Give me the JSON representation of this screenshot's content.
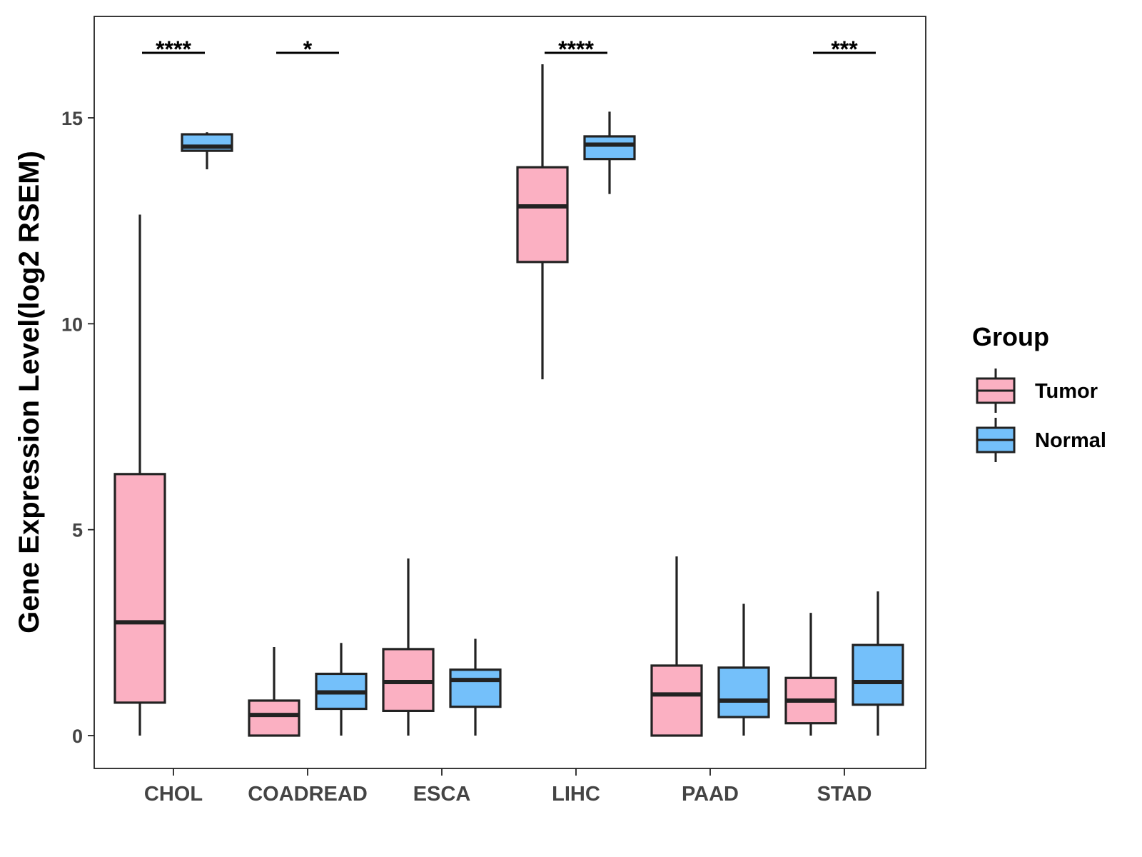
{
  "chart_data": {
    "type": "boxplot",
    "title": "",
    "xlabel": "",
    "ylabel": "Gene Expression Level(log2 RSEM)",
    "ylim": [
      -0.8,
      17.5
    ],
    "yticks": [
      0,
      5,
      10,
      15
    ],
    "categories": [
      "CHOL",
      "COADREAD",
      "ESCA",
      "LIHC",
      "PAAD",
      "STAD"
    ],
    "legend": {
      "title": "Group",
      "position": "right",
      "entries": [
        {
          "name": "Tumor",
          "color": "#FBB0C2"
        },
        {
          "name": "Normal",
          "color": "#74C0FA"
        }
      ]
    },
    "series": [
      {
        "name": "Tumor",
        "color": "#FBB0C2",
        "boxes": [
          {
            "category": "CHOL",
            "min": 0,
            "q1": 0.8,
            "median": 2.75,
            "q3": 6.35,
            "max": 12.65
          },
          {
            "category": "COADREAD",
            "min": 0,
            "q1": 0,
            "median": 0.5,
            "q3": 0.85,
            "max": 2.15
          },
          {
            "category": "ESCA",
            "min": 0,
            "q1": 0.6,
            "median": 1.3,
            "q3": 2.1,
            "max": 4.3
          },
          {
            "category": "LIHC",
            "min": 8.65,
            "q1": 11.5,
            "median": 12.85,
            "q3": 13.8,
            "max": 16.3
          },
          {
            "category": "PAAD",
            "min": 0,
            "q1": 0,
            "median": 1.0,
            "q3": 1.7,
            "max": 4.35
          },
          {
            "category": "STAD",
            "min": 0,
            "q1": 0.3,
            "median": 0.85,
            "q3": 1.4,
            "max": 2.98
          }
        ]
      },
      {
        "name": "Normal",
        "color": "#74C0FA",
        "boxes": [
          {
            "category": "CHOL",
            "min": 13.75,
            "q1": 14.2,
            "median": 14.3,
            "q3": 14.6,
            "max": 14.65
          },
          {
            "category": "COADREAD",
            "min": 0,
            "q1": 0.65,
            "median": 1.05,
            "q3": 1.5,
            "max": 2.25
          },
          {
            "category": "ESCA",
            "min": 0,
            "q1": 0.7,
            "median": 1.35,
            "q3": 1.6,
            "max": 2.35
          },
          {
            "category": "LIHC",
            "min": 13.15,
            "q1": 14.0,
            "median": 14.35,
            "q3": 14.55,
            "max": 15.15
          },
          {
            "category": "PAAD",
            "min": 0,
            "q1": 0.45,
            "median": 0.85,
            "q3": 1.65,
            "max": 3.2
          },
          {
            "category": "STAD",
            "min": 0,
            "q1": 0.75,
            "median": 1.3,
            "q3": 2.2,
            "max": 3.5
          }
        ]
      }
    ],
    "significance": [
      {
        "category": "CHOL",
        "label": "****"
      },
      {
        "category": "COADREAD",
        "label": "*"
      },
      {
        "category": "LIHC",
        "label": "****"
      },
      {
        "category": "STAD",
        "label": "***"
      }
    ],
    "grid": false
  }
}
